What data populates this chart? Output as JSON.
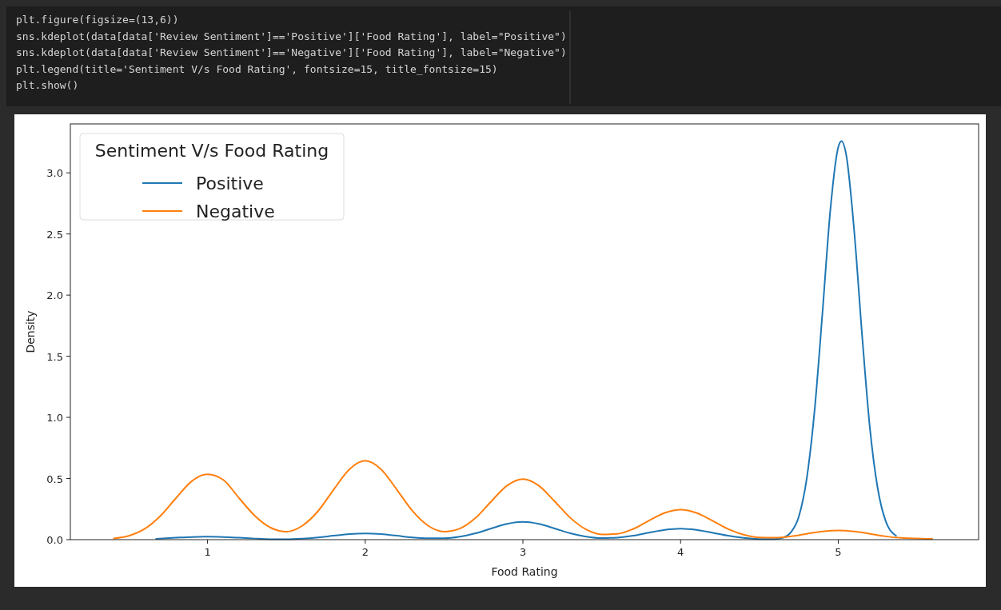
{
  "chart_data": {
    "type": "line",
    "xlabel": "Food Rating",
    "ylabel": "Density",
    "legend_title": "Sentiment V/s Food Rating",
    "legend": "top left",
    "grid": false,
    "xlim": [
      0.13,
      5.89
    ],
    "ylim": [
      0,
      3.4
    ],
    "xticks": [
      1,
      2,
      3,
      4,
      5
    ],
    "yticks": [
      {
        "value": 0,
        "label": "0.0"
      },
      {
        "value": 0.5,
        "label": "0.5"
      },
      {
        "value": 1,
        "label": "1.0"
      },
      {
        "value": 1.5,
        "label": "1.5"
      },
      {
        "value": 2,
        "label": "2.0"
      },
      {
        "value": 2.5,
        "label": "2.5"
      },
      {
        "value": 3,
        "label": "3.0"
      }
    ],
    "annotations": [
      "plt.figure(figsize=(13,6))",
      "sns.kdeplot(data[data['Review Sentiment']=='Positive']['Food Rating'], label=\"Positive\")",
      "sns.kdeplot(data[data['Review Sentiment']=='Negative']['Food Rating'], label=\"Negative\")",
      "plt.legend(title='Sentiment V/s Food Rating', fontsize=15, title_fontsize=15)",
      "plt.show()"
    ],
    "series": [
      {
        "name": "Positive",
        "color": "#1f77b4",
        "x": [
          0.67,
          0.8,
          0.9,
          1.0,
          1.1,
          1.2,
          1.3,
          1.4,
          1.5,
          1.6,
          1.7,
          1.8,
          1.9,
          2.0,
          2.1,
          2.2,
          2.3,
          2.4,
          2.5,
          2.6,
          2.7,
          2.8,
          2.9,
          3.0,
          3.1,
          3.2,
          3.3,
          3.4,
          3.5,
          3.6,
          3.7,
          3.8,
          3.9,
          4.0,
          4.1,
          4.2,
          4.3,
          4.4,
          4.5,
          4.6,
          4.65,
          4.7,
          4.75,
          4.8,
          4.85,
          4.9,
          4.95,
          5.0,
          5.02,
          5.05,
          5.1,
          5.15,
          5.2,
          5.25,
          5.3,
          5.37
        ],
        "values": [
          0.007,
          0.016,
          0.022,
          0.025,
          0.022,
          0.016,
          0.009,
          0.004,
          0.003,
          0.008,
          0.018,
          0.032,
          0.045,
          0.05,
          0.045,
          0.032,
          0.018,
          0.011,
          0.011,
          0.024,
          0.052,
          0.092,
          0.129,
          0.145,
          0.129,
          0.092,
          0.052,
          0.025,
          0.013,
          0.017,
          0.032,
          0.057,
          0.08,
          0.09,
          0.08,
          0.057,
          0.032,
          0.015,
          0.005,
          0.005,
          0.016,
          0.061,
          0.19,
          0.5,
          1.06,
          1.86,
          2.7,
          3.21,
          3.26,
          3.15,
          2.54,
          1.69,
          0.92,
          0.42,
          0.155,
          0.028
        ]
      },
      {
        "name": "Negative",
        "color": "#ff7f0e",
        "x": [
          0.4,
          0.5,
          0.6,
          0.7,
          0.8,
          0.9,
          1.0,
          1.1,
          1.2,
          1.3,
          1.4,
          1.5,
          1.6,
          1.7,
          1.8,
          1.9,
          2.0,
          2.1,
          2.2,
          2.3,
          2.4,
          2.5,
          2.6,
          2.7,
          2.8,
          2.9,
          3.0,
          3.1,
          3.2,
          3.3,
          3.4,
          3.5,
          3.6,
          3.7,
          3.8,
          3.9,
          4.0,
          4.1,
          4.2,
          4.3,
          4.4,
          4.5,
          4.6,
          4.7,
          4.8,
          4.9,
          5.0,
          5.1,
          5.2,
          5.3,
          5.4,
          5.5,
          5.6
        ],
        "values": [
          0.009,
          0.031,
          0.087,
          0.193,
          0.34,
          0.478,
          0.535,
          0.489,
          0.34,
          0.195,
          0.098,
          0.065,
          0.113,
          0.232,
          0.41,
          0.576,
          0.645,
          0.576,
          0.41,
          0.234,
          0.113,
          0.066,
          0.091,
          0.178,
          0.314,
          0.442,
          0.495,
          0.442,
          0.315,
          0.179,
          0.084,
          0.043,
          0.048,
          0.088,
          0.156,
          0.219,
          0.245,
          0.219,
          0.156,
          0.088,
          0.041,
          0.018,
          0.016,
          0.027,
          0.048,
          0.067,
          0.075,
          0.067,
          0.048,
          0.027,
          0.014,
          0.009,
          0.006
        ]
      }
    ]
  }
}
